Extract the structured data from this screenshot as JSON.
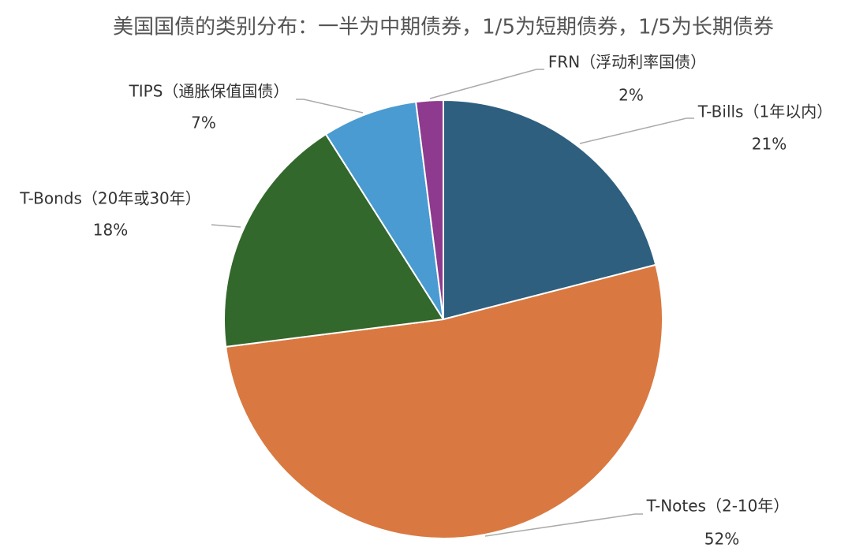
{
  "chart_data": {
    "type": "pie",
    "title": "美国国债的类别分布：一半为中期债券，1/5为短期债券，1/5为长期债券",
    "categories": [
      "T-Bills（1年以内）",
      "T-Notes（2-10年）",
      "T-Bonds（20年或30年）",
      "TIPS（通胀保值国债）",
      "FRN（浮动利率国债）"
    ],
    "values": [
      21,
      52,
      18,
      7,
      2
    ],
    "value_labels": [
      "21%",
      "52%",
      "18%",
      "7%",
      "2%"
    ],
    "colors": [
      "#2e5f7f",
      "#d97941",
      "#33682c",
      "#4a9bd1",
      "#8e3a8e"
    ]
  }
}
